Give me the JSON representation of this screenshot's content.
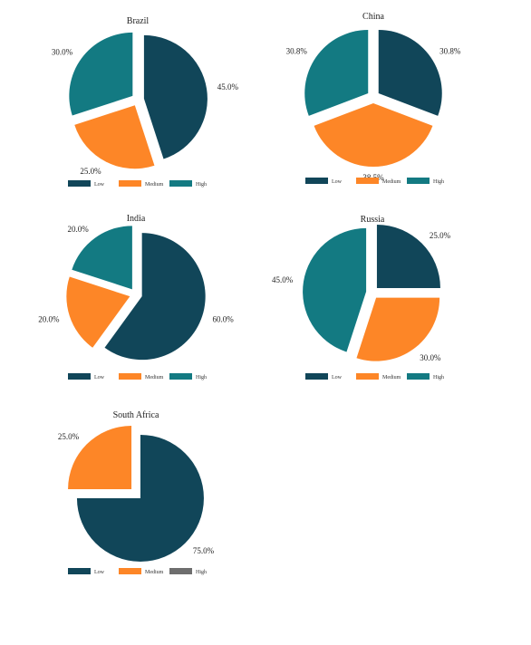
{
  "colors": {
    "low": "#114659",
    "medium": "#fd8627",
    "high": "#137a82",
    "high_empty": "#6e6e6e"
  },
  "legend_labels": [
    "Low",
    "Medium",
    "High"
  ],
  "chart_data": [
    {
      "type": "pie",
      "title": "Brazil",
      "categories": [
        "Low",
        "Medium",
        "High"
      ],
      "values": [
        45.0,
        25.0,
        30.0
      ],
      "value_labels": [
        "45.0%",
        "25.0%",
        "30.0%"
      ],
      "explode": true,
      "legend": "bottom"
    },
    {
      "type": "pie",
      "title": "China",
      "categories": [
        "Low",
        "Medium",
        "High"
      ],
      "values": [
        30.8,
        38.5,
        30.8
      ],
      "value_labels": [
        "30.8%",
        "38.5%",
        "30.8%"
      ],
      "explode": true,
      "legend": "bottom"
    },
    {
      "type": "pie",
      "title": "India",
      "categories": [
        "Low",
        "Medium",
        "High"
      ],
      "values": [
        60.0,
        20.0,
        20.0
      ],
      "value_labels": [
        "60.0%",
        "20.0%",
        "20.0%"
      ],
      "explode": true,
      "legend": "bottom"
    },
    {
      "type": "pie",
      "title": "Russia",
      "categories": [
        "Low",
        "Medium",
        "High"
      ],
      "values": [
        25.0,
        30.0,
        45.0
      ],
      "value_labels": [
        "25.0%",
        "30.0%",
        "45.0%"
      ],
      "explode": true,
      "legend": "bottom"
    },
    {
      "type": "pie",
      "title": "South Africa",
      "categories": [
        "Low",
        "Medium",
        "High"
      ],
      "values": [
        75.0,
        25.0,
        0.0
      ],
      "value_labels": [
        "75.0%",
        "25.0%",
        ""
      ],
      "explode": true,
      "legend": "bottom"
    }
  ]
}
